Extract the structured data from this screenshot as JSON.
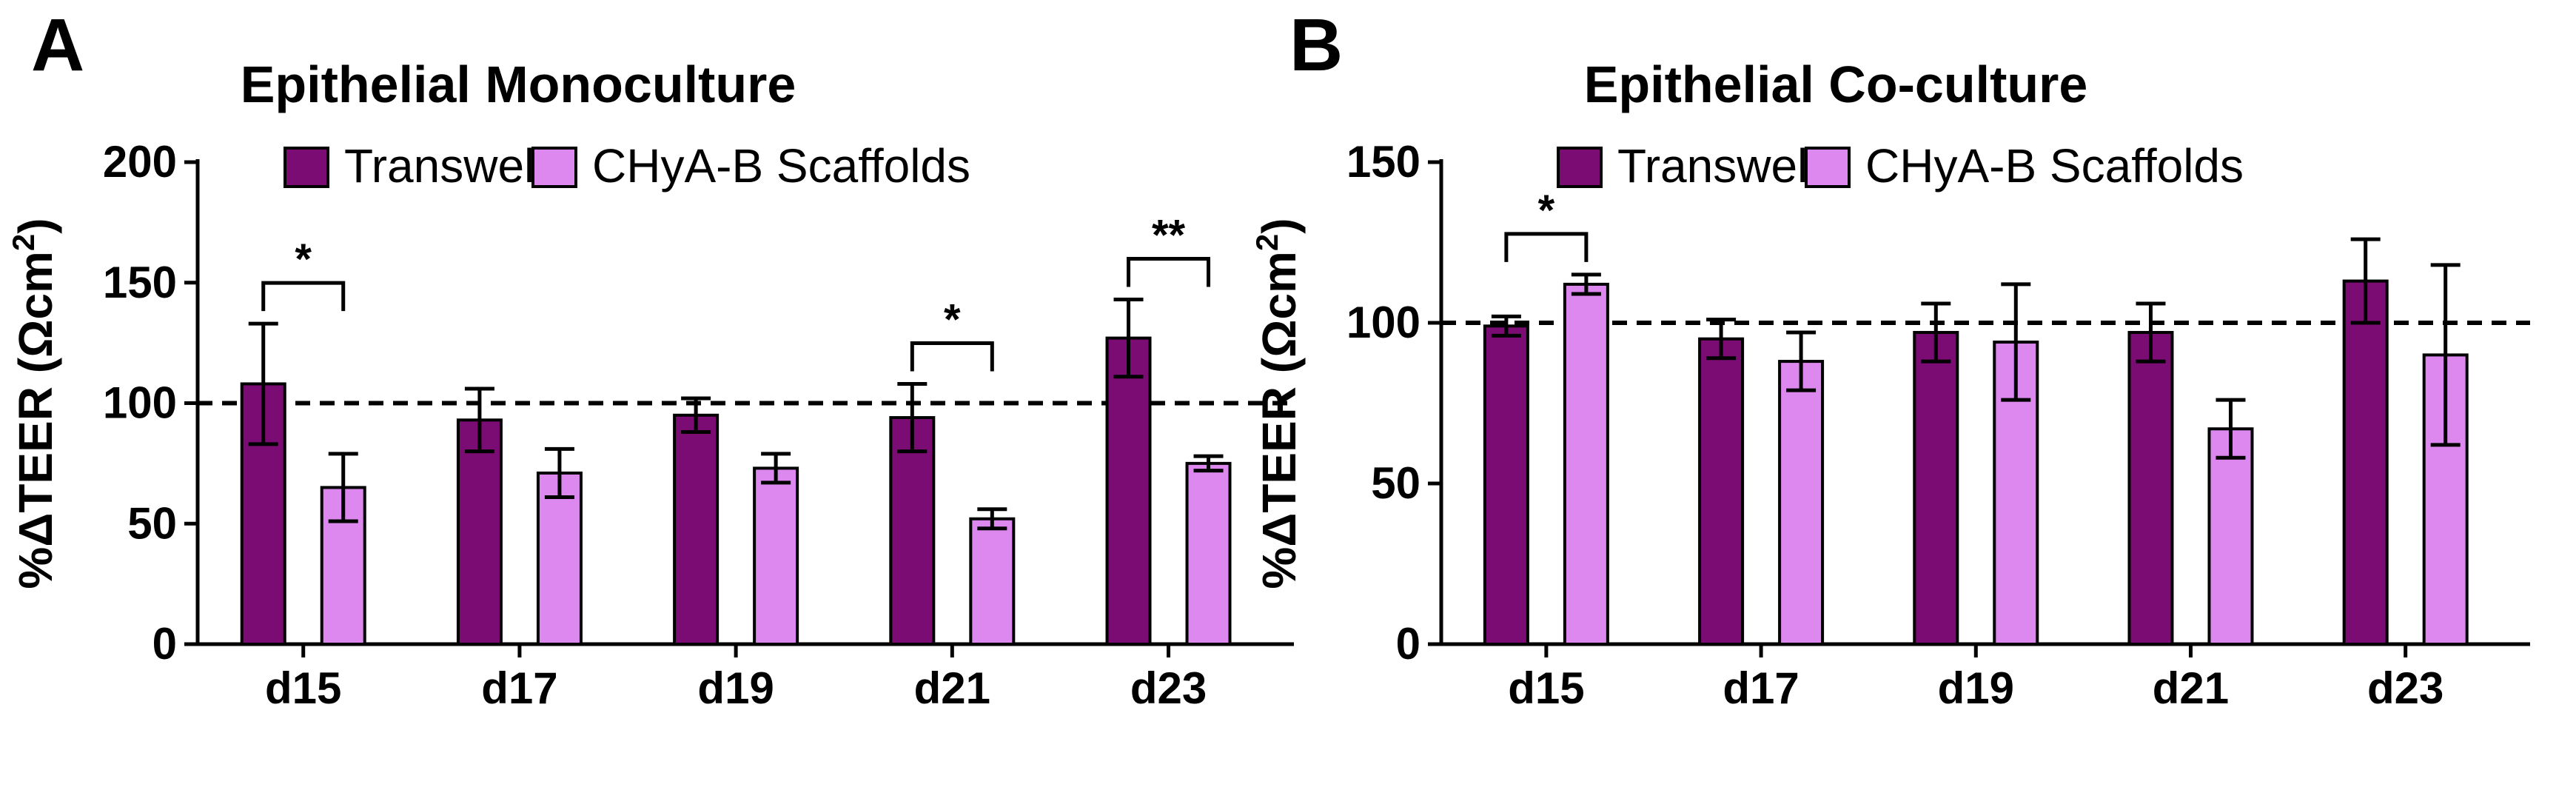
{
  "colors": {
    "transwells": "#7b0c74",
    "scaffolds": "#dc88ee",
    "stroke": "#000000"
  },
  "chart_data": [
    {
      "type": "bar",
      "panel": "A",
      "title": "Epithelial  Monoculture",
      "xlabel": "",
      "ylabel": "%ΔTEER (Ωcm2)",
      "ylim": [
        0,
        200
      ],
      "yticks": [
        0,
        50,
        100,
        150,
        200
      ],
      "reference_line": 100,
      "legend_position": "top-right",
      "categories": [
        "d15",
        "d17",
        "d19",
        "d21",
        "d23"
      ],
      "series": [
        {
          "name": "Transwells",
          "values": [
            108,
            93,
            95,
            94,
            127
          ],
          "errors": [
            25,
            13,
            7,
            14,
            16
          ]
        },
        {
          "name": "CHyA-B Scaffolds",
          "values": [
            65,
            71,
            73,
            52,
            75
          ],
          "errors": [
            14,
            10,
            6,
            4,
            3
          ]
        }
      ],
      "significance": [
        {
          "category": "d15",
          "label": "*"
        },
        {
          "category": "d21",
          "label": "*"
        },
        {
          "category": "d23",
          "label": "**"
        }
      ]
    },
    {
      "type": "bar",
      "panel": "B",
      "title": "Epithelial  Co-culture",
      "xlabel": "",
      "ylabel": "%ΔTEER (Ωcm2)",
      "ylim": [
        0,
        150
      ],
      "yticks": [
        0,
        50,
        100,
        150
      ],
      "reference_line": 100,
      "legend_position": "top-right",
      "categories": [
        "d15",
        "d17",
        "d19",
        "d21",
        "d23"
      ],
      "series": [
        {
          "name": "Transwells",
          "values": [
            99,
            95,
            97,
            97,
            113
          ],
          "errors": [
            3,
            6,
            9,
            9,
            13
          ]
        },
        {
          "name": "CHyA-B Scaffolds",
          "values": [
            112,
            88,
            94,
            67,
            90
          ],
          "errors": [
            3,
            9,
            18,
            9,
            28
          ]
        }
      ],
      "significance": [
        {
          "category": "d15",
          "label": "*"
        }
      ]
    }
  ]
}
